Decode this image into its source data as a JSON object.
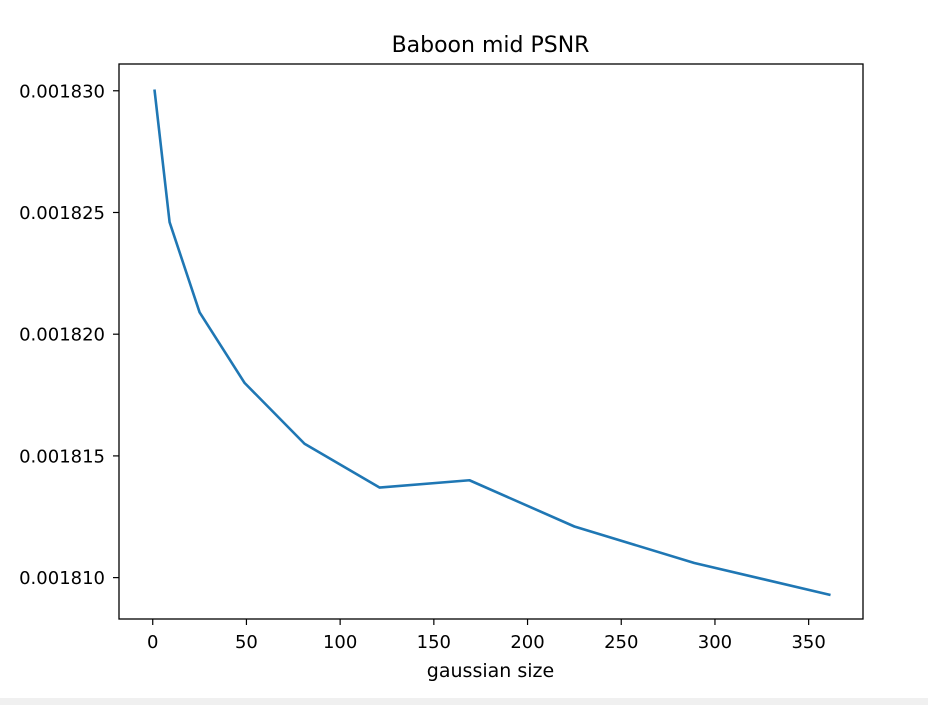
{
  "chart_data": {
    "type": "line",
    "title": "Baboon mid PSNR",
    "xlabel": "gaussian size",
    "ylabel": "",
    "xlim": [
      -18,
      379
    ],
    "ylim": [
      0.0018083,
      0.0018311
    ],
    "xticks": [
      0,
      50,
      100,
      150,
      200,
      250,
      300,
      350
    ],
    "xtick_labels": [
      "0",
      "50",
      "100",
      "150",
      "200",
      "250",
      "300",
      "350"
    ],
    "yticks": [
      0.00181,
      0.001815,
      0.00182,
      0.001825,
      0.00183
    ],
    "ytick_labels": [
      "0.001810",
      "0.001815",
      "0.001820",
      "0.001825",
      "0.001830"
    ],
    "grid": false,
    "series": [
      {
        "color": "#1f77b4",
        "x": [
          1,
          9,
          25,
          49,
          81,
          121,
          169,
          225,
          289,
          361
        ],
        "y": [
          0.00183,
          0.0018246,
          0.0018209,
          0.001818,
          0.0018155,
          0.0018137,
          0.001814,
          0.0018121,
          0.0018106,
          0.0018093
        ]
      }
    ]
  }
}
